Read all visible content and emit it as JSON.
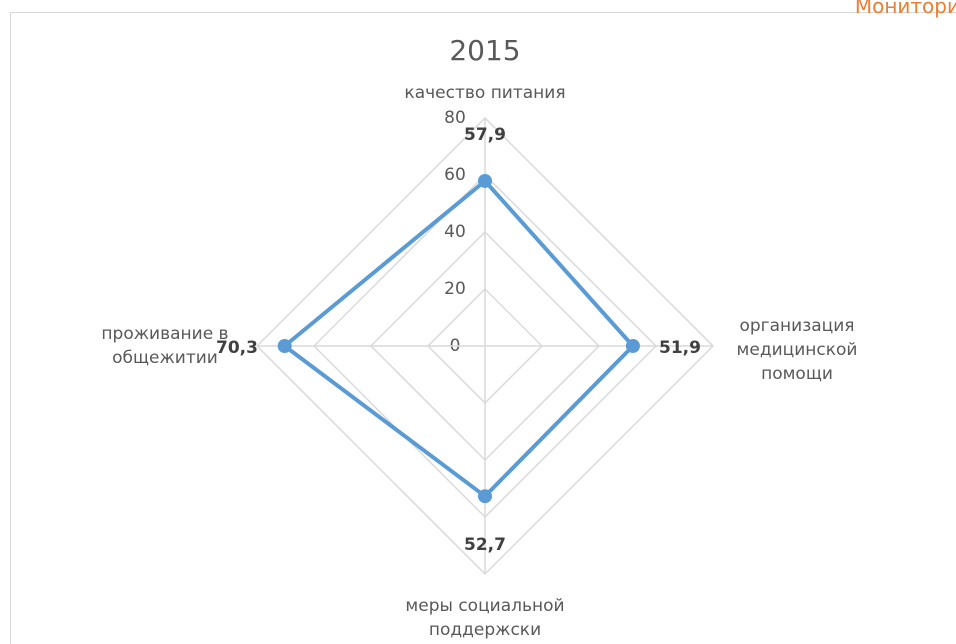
{
  "page_header": "Монитори",
  "chart_data": {
    "type": "radar",
    "title": "2015",
    "categories": [
      "качество питания",
      "организация\nмедицинской\nпомощи",
      "меры социальной\nподдержски",
      "проживание в\nобщежитии"
    ],
    "series": [
      {
        "name": "2015",
        "color": "#5b9bd5",
        "values": [
          57.9,
          51.9,
          52.7,
          70.3
        ],
        "value_labels": [
          "57,9",
          "51,9",
          "52,7",
          "70,3"
        ]
      }
    ],
    "ylim": [
      0,
      80
    ],
    "yticks": [
      0,
      20,
      40,
      60,
      80
    ],
    "grid": true
  }
}
